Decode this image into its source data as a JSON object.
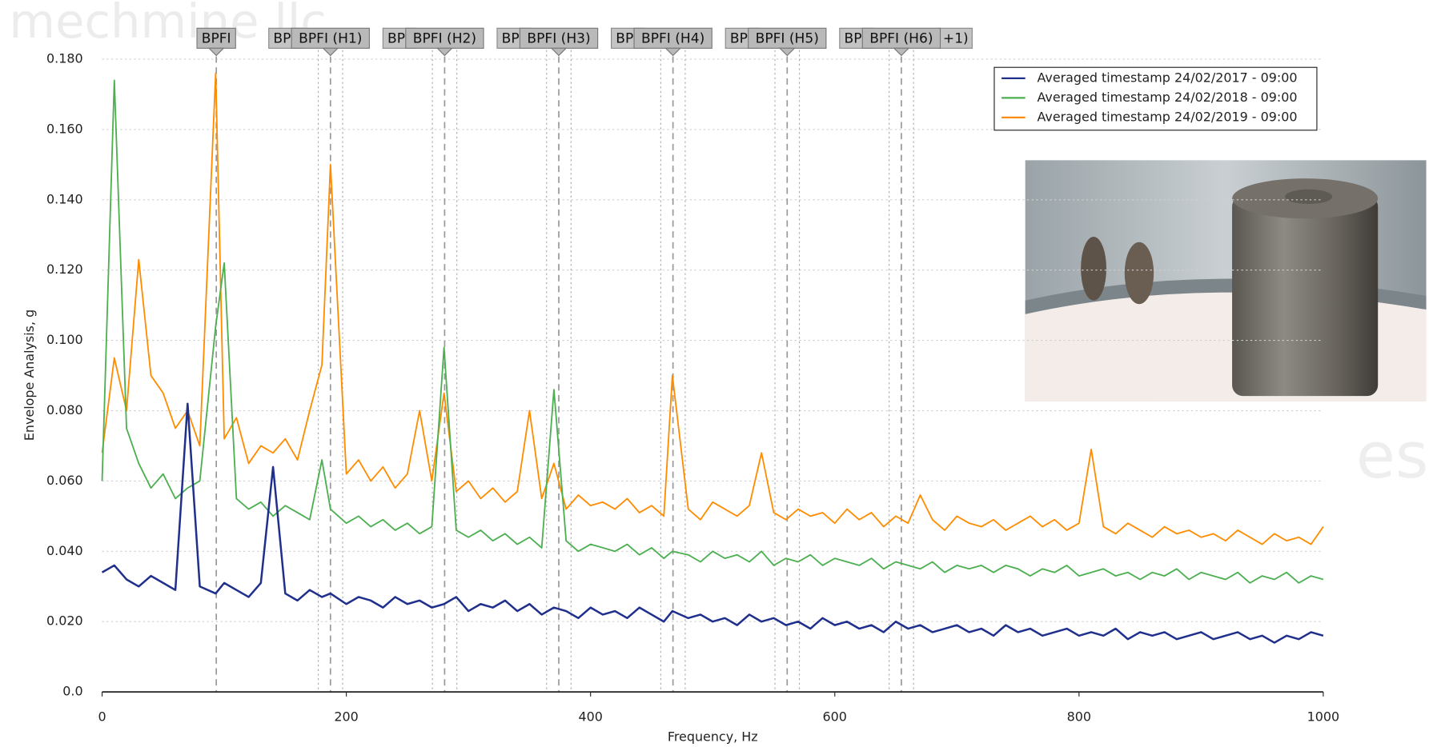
{
  "chart_data": {
    "type": "line",
    "watermark": "mechmine llc",
    "watermark_right": "es",
    "y_label": "Envelope Analysis, g",
    "x_label": "Frequency, Hz",
    "xlim": [
      0,
      1000
    ],
    "xticks": [
      0,
      200,
      400,
      600,
      800,
      1000
    ],
    "ylim": [
      0,
      0.18
    ],
    "yticks": [
      {
        "value": 0,
        "label": "0.0"
      },
      {
        "value": 0.02,
        "label": "0.020"
      },
      {
        "value": 0.04,
        "label": "0.040"
      },
      {
        "value": 0.06,
        "label": "0.060"
      },
      {
        "value": 0.08,
        "label": "0.080"
      },
      {
        "value": 0.1,
        "label": "0.100"
      },
      {
        "value": 0.12,
        "label": "0.120"
      },
      {
        "value": 0.14,
        "label": "0.140"
      },
      {
        "value": 0.16,
        "label": "0.160"
      },
      {
        "value": 0.18,
        "label": "0.180"
      }
    ],
    "grid": true,
    "legend": "top-right",
    "markers": [
      {
        "freq": 93.5,
        "label": "BPFI"
      },
      {
        "freq": 187,
        "label": "BPFI (H1)"
      },
      {
        "freq": 280.5,
        "label": "BPFI (H2)"
      },
      {
        "freq": 374,
        "label": "BPFI (H3)"
      },
      {
        "freq": 467.5,
        "label": "BPFI (H4)"
      },
      {
        "freq": 561,
        "label": "BPFI (H5)"
      },
      {
        "freq": 654.5,
        "label": "BPFI (H6)"
      }
    ],
    "sidebands": [
      177,
      197,
      270.5,
      290.5,
      364,
      384,
      457.5,
      477.5,
      551,
      571,
      644.5,
      664.5
    ],
    "marker_fragments": [
      "BPF",
      "BPF",
      "BPF",
      "BPF",
      "BPF",
      "BPF",
      "+1)"
    ],
    "x": [
      0,
      10,
      20,
      30,
      40,
      50,
      60,
      70,
      80,
      93,
      100,
      110,
      120,
      130,
      140,
      150,
      160,
      170,
      180,
      187,
      200,
      210,
      220,
      230,
      240,
      250,
      260,
      270,
      280,
      290,
      300,
      310,
      320,
      330,
      340,
      350,
      360,
      370,
      380,
      390,
      400,
      410,
      420,
      430,
      440,
      450,
      460,
      467,
      480,
      490,
      500,
      510,
      520,
      530,
      540,
      550,
      560,
      570,
      580,
      590,
      600,
      610,
      620,
      630,
      640,
      650,
      660,
      670,
      680,
      690,
      700,
      710,
      720,
      730,
      740,
      750,
      760,
      770,
      780,
      790,
      800,
      810,
      820,
      830,
      840,
      850,
      860,
      870,
      880,
      890,
      900,
      910,
      920,
      930,
      940,
      950,
      960,
      970,
      980,
      990,
      1000
    ],
    "series": [
      {
        "name": "Averaged timestamp 24/02/2017 - 09:00",
        "color": "#1f2f8c",
        "values": [
          0.034,
          0.036,
          0.032,
          0.03,
          0.033,
          0.031,
          0.029,
          0.082,
          0.03,
          0.028,
          0.031,
          0.029,
          0.027,
          0.031,
          0.064,
          0.028,
          0.026,
          0.029,
          0.027,
          0.028,
          0.025,
          0.027,
          0.026,
          0.024,
          0.027,
          0.025,
          0.026,
          0.024,
          0.025,
          0.027,
          0.023,
          0.025,
          0.024,
          0.026,
          0.023,
          0.025,
          0.022,
          0.024,
          0.023,
          0.021,
          0.024,
          0.022,
          0.023,
          0.021,
          0.024,
          0.022,
          0.02,
          0.023,
          0.021,
          0.022,
          0.02,
          0.021,
          0.019,
          0.022,
          0.02,
          0.021,
          0.019,
          0.02,
          0.018,
          0.021,
          0.019,
          0.02,
          0.018,
          0.019,
          0.017,
          0.02,
          0.018,
          0.019,
          0.017,
          0.018,
          0.019,
          0.017,
          0.018,
          0.016,
          0.019,
          0.017,
          0.018,
          0.016,
          0.017,
          0.018,
          0.016,
          0.017,
          0.016,
          0.018,
          0.015,
          0.017,
          0.016,
          0.017,
          0.015,
          0.016,
          0.017,
          0.015,
          0.016,
          0.017,
          0.015,
          0.016,
          0.014,
          0.016,
          0.015,
          0.017,
          0.016
        ]
      },
      {
        "name": "Averaged timestamp 24/02/2018 - 09:00",
        "color": "#4caf50",
        "values": [
          0.06,
          0.174,
          0.075,
          0.065,
          0.058,
          0.062,
          0.055,
          0.058,
          0.06,
          0.104,
          0.122,
          0.055,
          0.052,
          0.054,
          0.05,
          0.053,
          0.051,
          0.049,
          0.066,
          0.052,
          0.048,
          0.05,
          0.047,
          0.049,
          0.046,
          0.048,
          0.045,
          0.047,
          0.098,
          0.046,
          0.044,
          0.046,
          0.043,
          0.045,
          0.042,
          0.044,
          0.041,
          0.086,
          0.043,
          0.04,
          0.042,
          0.041,
          0.04,
          0.042,
          0.039,
          0.041,
          0.038,
          0.04,
          0.039,
          0.037,
          0.04,
          0.038,
          0.039,
          0.037,
          0.04,
          0.036,
          0.038,
          0.037,
          0.039,
          0.036,
          0.038,
          0.037,
          0.036,
          0.038,
          0.035,
          0.037,
          0.036,
          0.035,
          0.037,
          0.034,
          0.036,
          0.035,
          0.036,
          0.034,
          0.036,
          0.035,
          0.033,
          0.035,
          0.034,
          0.036,
          0.033,
          0.034,
          0.035,
          0.033,
          0.034,
          0.032,
          0.034,
          0.033,
          0.035,
          0.032,
          0.034,
          0.033,
          0.032,
          0.034,
          0.031,
          0.033,
          0.032,
          0.034,
          0.031,
          0.033,
          0.032
        ]
      },
      {
        "name": "Averaged timestamp 24/02/2019 - 09:00",
        "color": "#ff8c00",
        "values": [
          0.068,
          0.095,
          0.08,
          0.123,
          0.09,
          0.085,
          0.075,
          0.08,
          0.07,
          0.176,
          0.072,
          0.078,
          0.065,
          0.07,
          0.068,
          0.072,
          0.066,
          0.08,
          0.093,
          0.15,
          0.062,
          0.066,
          0.06,
          0.064,
          0.058,
          0.062,
          0.08,
          0.06,
          0.085,
          0.057,
          0.06,
          0.055,
          0.058,
          0.054,
          0.057,
          0.08,
          0.055,
          0.065,
          0.052,
          0.056,
          0.053,
          0.054,
          0.052,
          0.055,
          0.051,
          0.053,
          0.05,
          0.09,
          0.052,
          0.049,
          0.054,
          0.052,
          0.05,
          0.053,
          0.068,
          0.051,
          0.049,
          0.052,
          0.05,
          0.051,
          0.048,
          0.052,
          0.049,
          0.051,
          0.047,
          0.05,
          0.048,
          0.056,
          0.049,
          0.046,
          0.05,
          0.048,
          0.047,
          0.049,
          0.046,
          0.048,
          0.05,
          0.047,
          0.049,
          0.046,
          0.048,
          0.069,
          0.047,
          0.045,
          0.048,
          0.046,
          0.044,
          0.047,
          0.045,
          0.046,
          0.044,
          0.045,
          0.043,
          0.046,
          0.044,
          0.042,
          0.045,
          0.043,
          0.044,
          0.042,
          0.047
        ]
      }
    ]
  }
}
